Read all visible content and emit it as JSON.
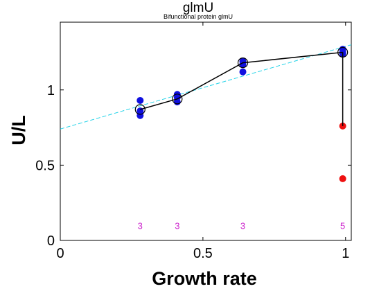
{
  "chart_data": {
    "type": "scatter",
    "title": "glmU",
    "subtitle": "Bifunctional protein glmU",
    "xlabel": "Growth rate",
    "ylabel": "U/L",
    "xlim": [
      0,
      1.02
    ],
    "ylim": [
      0,
      1.45
    ],
    "xticks": [
      0,
      0.5,
      1
    ],
    "yticks": [
      0,
      0.5,
      1
    ],
    "xtick_labels": [
      "0",
      "0.5",
      "1"
    ],
    "ytick_labels": [
      "0",
      "0.5",
      "1"
    ],
    "grid": false,
    "legend": "none",
    "colors": {
      "replicates": "#1010e0",
      "outliers": "#ee1111",
      "mean_line": "#000000",
      "fit_line": "#22d3e8",
      "counts": "#cc22cc"
    },
    "replicates": [
      {
        "x": 0.28,
        "y": 0.93
      },
      {
        "x": 0.28,
        "y": 0.86
      },
      {
        "x": 0.28,
        "y": 0.83
      },
      {
        "x": 0.41,
        "y": 0.97
      },
      {
        "x": 0.41,
        "y": 0.95
      },
      {
        "x": 0.41,
        "y": 0.92
      },
      {
        "x": 0.64,
        "y": 1.19
      },
      {
        "x": 0.64,
        "y": 1.17
      },
      {
        "x": 0.64,
        "y": 1.12
      },
      {
        "x": 0.99,
        "y": 1.27
      },
      {
        "x": 0.99,
        "y": 1.25
      },
      {
        "x": 0.99,
        "y": 1.24
      }
    ],
    "outliers": [
      {
        "x": 0.99,
        "y": 0.76
      },
      {
        "x": 0.99,
        "y": 0.41
      }
    ],
    "means": [
      {
        "x": 0.28,
        "y": 0.87
      },
      {
        "x": 0.41,
        "y": 0.94
      },
      {
        "x": 0.64,
        "y": 1.18
      },
      {
        "x": 0.99,
        "y": 1.25
      }
    ],
    "mean_drop": {
      "x": 0.99,
      "y_from": 1.25,
      "y_to": 0.76
    },
    "fit_line": {
      "x": [
        0,
        1.02
      ],
      "y": [
        0.74,
        1.3
      ]
    },
    "counts": [
      {
        "x": 0.28,
        "label": "3"
      },
      {
        "x": 0.41,
        "label": "3"
      },
      {
        "x": 0.64,
        "label": "3"
      },
      {
        "x": 0.99,
        "label": "5"
      }
    ],
    "count_y": 0.1
  }
}
